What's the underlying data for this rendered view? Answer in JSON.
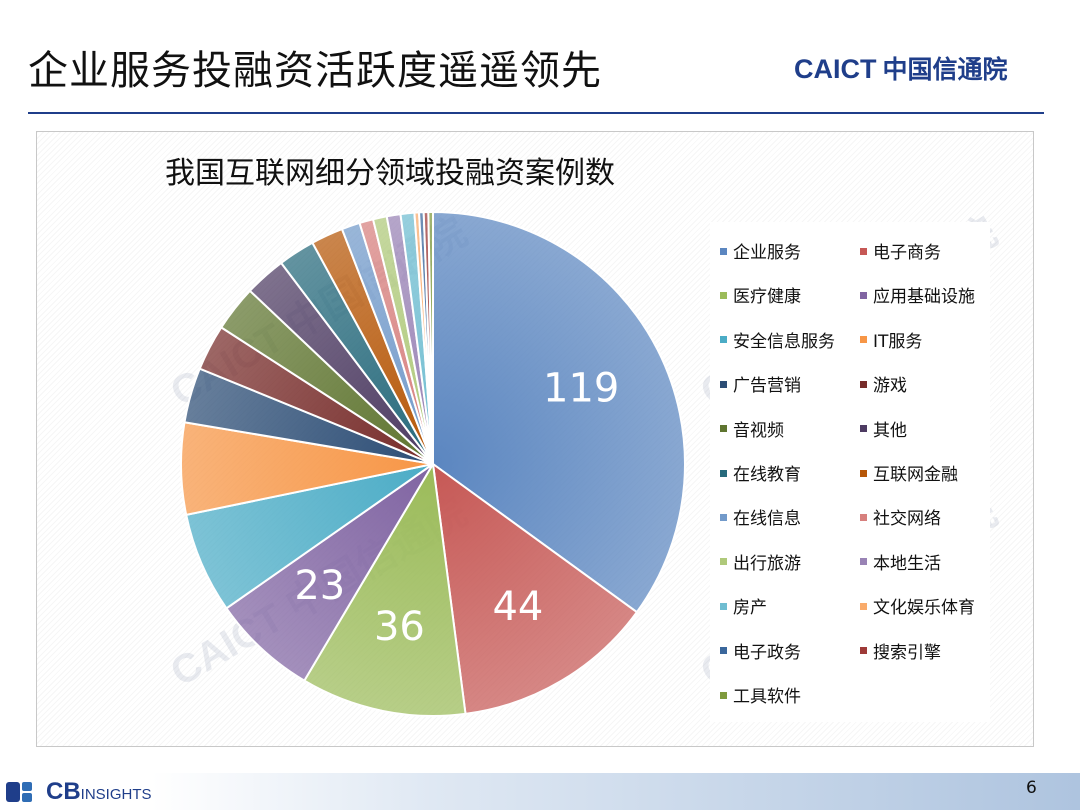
{
  "slide": {
    "title": "企业服务投融资活跃度遥遥领先",
    "brand_en": "CAICT",
    "brand_cn": "中国信通院",
    "footer_logo_bold": "CB",
    "footer_logo_rest": "INSIGHTS",
    "page_number": "6",
    "watermark": "CAICT 中国信通院"
  },
  "chart_data": {
    "type": "pie",
    "title": "我国互联网细分领域投融资案例数",
    "legend_position": "right",
    "slices": [
      {
        "name": "企业服务",
        "value": 119,
        "color": "#5b86c0",
        "label": "119"
      },
      {
        "name": "电子商务",
        "value": 44,
        "color": "#c65855",
        "label": "44"
      },
      {
        "name": "医疗健康",
        "value": 36,
        "color": "#9bbb59",
        "label": "36"
      },
      {
        "name": "应用基础设施",
        "value": 23,
        "color": "#8064a2",
        "label": "23"
      },
      {
        "name": "安全信息服务",
        "value": 22,
        "color": "#4bacc6",
        "label": ""
      },
      {
        "name": "IT服务",
        "value": 20,
        "color": "#f79646",
        "label": ""
      },
      {
        "name": "广告营销",
        "value": 12,
        "color": "#2c4d75",
        "label": ""
      },
      {
        "name": "游戏",
        "value": 10,
        "color": "#772c2a",
        "label": ""
      },
      {
        "name": "音视频",
        "value": 10,
        "color": "#5f7530",
        "label": ""
      },
      {
        "name": "其他",
        "value": 9,
        "color": "#4d3b62",
        "label": ""
      },
      {
        "name": "在线教育",
        "value": 8,
        "color": "#276a7c",
        "label": ""
      },
      {
        "name": "互联网金融",
        "value": 7,
        "color": "#b65708",
        "label": ""
      },
      {
        "name": "在线信息",
        "value": 4,
        "color": "#729aca",
        "label": ""
      },
      {
        "name": "社交网络",
        "value": 3,
        "color": "#d7807e",
        "label": ""
      },
      {
        "name": "出行旅游",
        "value": 3,
        "color": "#afc97a",
        "label": ""
      },
      {
        "name": "本地生活",
        "value": 3,
        "color": "#9983b5",
        "label": ""
      },
      {
        "name": "房产",
        "value": 3,
        "color": "#6fbdd1",
        "label": ""
      },
      {
        "name": "文化娱乐体育",
        "value": 1,
        "color": "#f9ab6b",
        "label": ""
      },
      {
        "name": "电子政务",
        "value": 1,
        "color": "#3a679c",
        "label": ""
      },
      {
        "name": "搜索引擎",
        "value": 1,
        "color": "#9e3a38",
        "label": ""
      },
      {
        "name": "工具软件",
        "value": 1,
        "color": "#7f9a3d",
        "label": ""
      }
    ]
  }
}
